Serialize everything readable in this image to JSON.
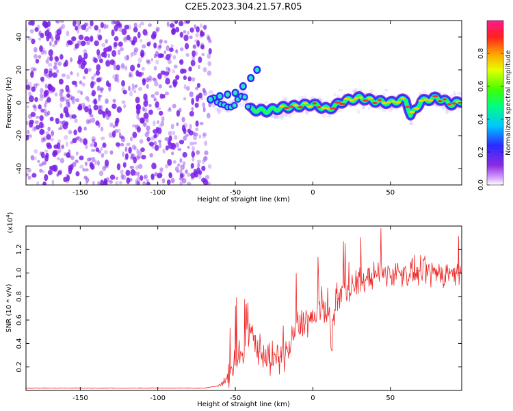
{
  "title": "C2E5.2023.304.21.57.R05",
  "colors": {
    "snr_line": "#ee2222",
    "spectrogram_noise": "#7a1ee6",
    "axis": "#000000"
  },
  "chart_data": [
    {
      "type": "heatmap",
      "xlabel": "Height of straight line (km)",
      "ylabel": "Frequency (Hz)",
      "xlim": [
        -185,
        96
      ],
      "ylim": [
        -50,
        50
      ],
      "xticks": [
        -150,
        -100,
        -50,
        0,
        50
      ],
      "xtick_labels": [
        "-150",
        "-100",
        "-50",
        "0",
        "50"
      ],
      "yticks": [
        -40,
        -20,
        0,
        20,
        40
      ],
      "ytick_labels": [
        "-40",
        "-20",
        "0",
        "20",
        "40"
      ],
      "noise_region_x": [
        -185,
        -68
      ],
      "signal_ridge": {
        "x": [
          -66,
          -55,
          -45,
          -40,
          -30,
          -20,
          -10,
          0,
          10,
          20,
          30,
          40,
          50,
          60,
          63,
          70,
          80,
          90,
          96
        ],
        "y": [
          3,
          -3,
          5,
          -4,
          -5,
          -3,
          -2,
          -1,
          -4,
          1,
          3,
          1,
          0,
          2,
          -8,
          1,
          3,
          -1,
          1
        ]
      },
      "upper_branch": {
        "x": [
          -66,
          -60,
          -55,
          -50,
          -45,
          -40,
          -36
        ],
        "y": [
          2,
          4,
          5,
          6,
          10,
          15,
          20
        ]
      },
      "colorbar": {
        "label": "Normalized spectral amplitude",
        "range": [
          0.0,
          1.0
        ],
        "ticks": [
          0.0,
          0.2,
          0.4,
          0.6,
          0.8
        ],
        "tick_labels": [
          "0.0",
          "0.2",
          "0.4",
          "0.6",
          "0.8"
        ]
      }
    },
    {
      "type": "line",
      "xlabel": "Height of straight line (km)",
      "ylabel": "SNR (10 * v/v)",
      "scale_label_base": "(x10",
      "scale_label_exp": "4",
      "scale_label_close": ")",
      "xlim": [
        -185,
        96
      ],
      "ylim": [
        0.0,
        1.4
      ],
      "xticks": [
        -150,
        -100,
        -50,
        0,
        50
      ],
      "xtick_labels": [
        "-150",
        "-100",
        "-50",
        "0",
        "50"
      ],
      "yticks": [
        0.2,
        0.4,
        0.6,
        0.8,
        1.0,
        1.2
      ],
      "ytick_labels": [
        "0.2",
        "0.4",
        "0.6",
        "0.8",
        "1.0",
        "1.2"
      ],
      "series": [
        {
          "x": [
            -185,
            -150,
            -100,
            -70,
            -60,
            -55,
            -50,
            -45,
            -40,
            -35,
            -30,
            -25,
            -20,
            -15,
            -12,
            -10,
            -5,
            0,
            5,
            10,
            12,
            15,
            20,
            25,
            30,
            35,
            40,
            50,
            60,
            70,
            80,
            90,
            96
          ],
          "y": [
            0.02,
            0.02,
            0.02,
            0.02,
            0.04,
            0.12,
            0.25,
            0.3,
            0.5,
            0.35,
            0.3,
            0.25,
            0.3,
            0.35,
            0.5,
            0.55,
            0.6,
            0.6,
            0.68,
            0.72,
            0.4,
            0.8,
            0.85,
            0.88,
            0.92,
            0.95,
            0.98,
            1.0,
            1.0,
            1.0,
            1.0,
            1.0,
            0.98
          ]
        }
      ]
    }
  ]
}
